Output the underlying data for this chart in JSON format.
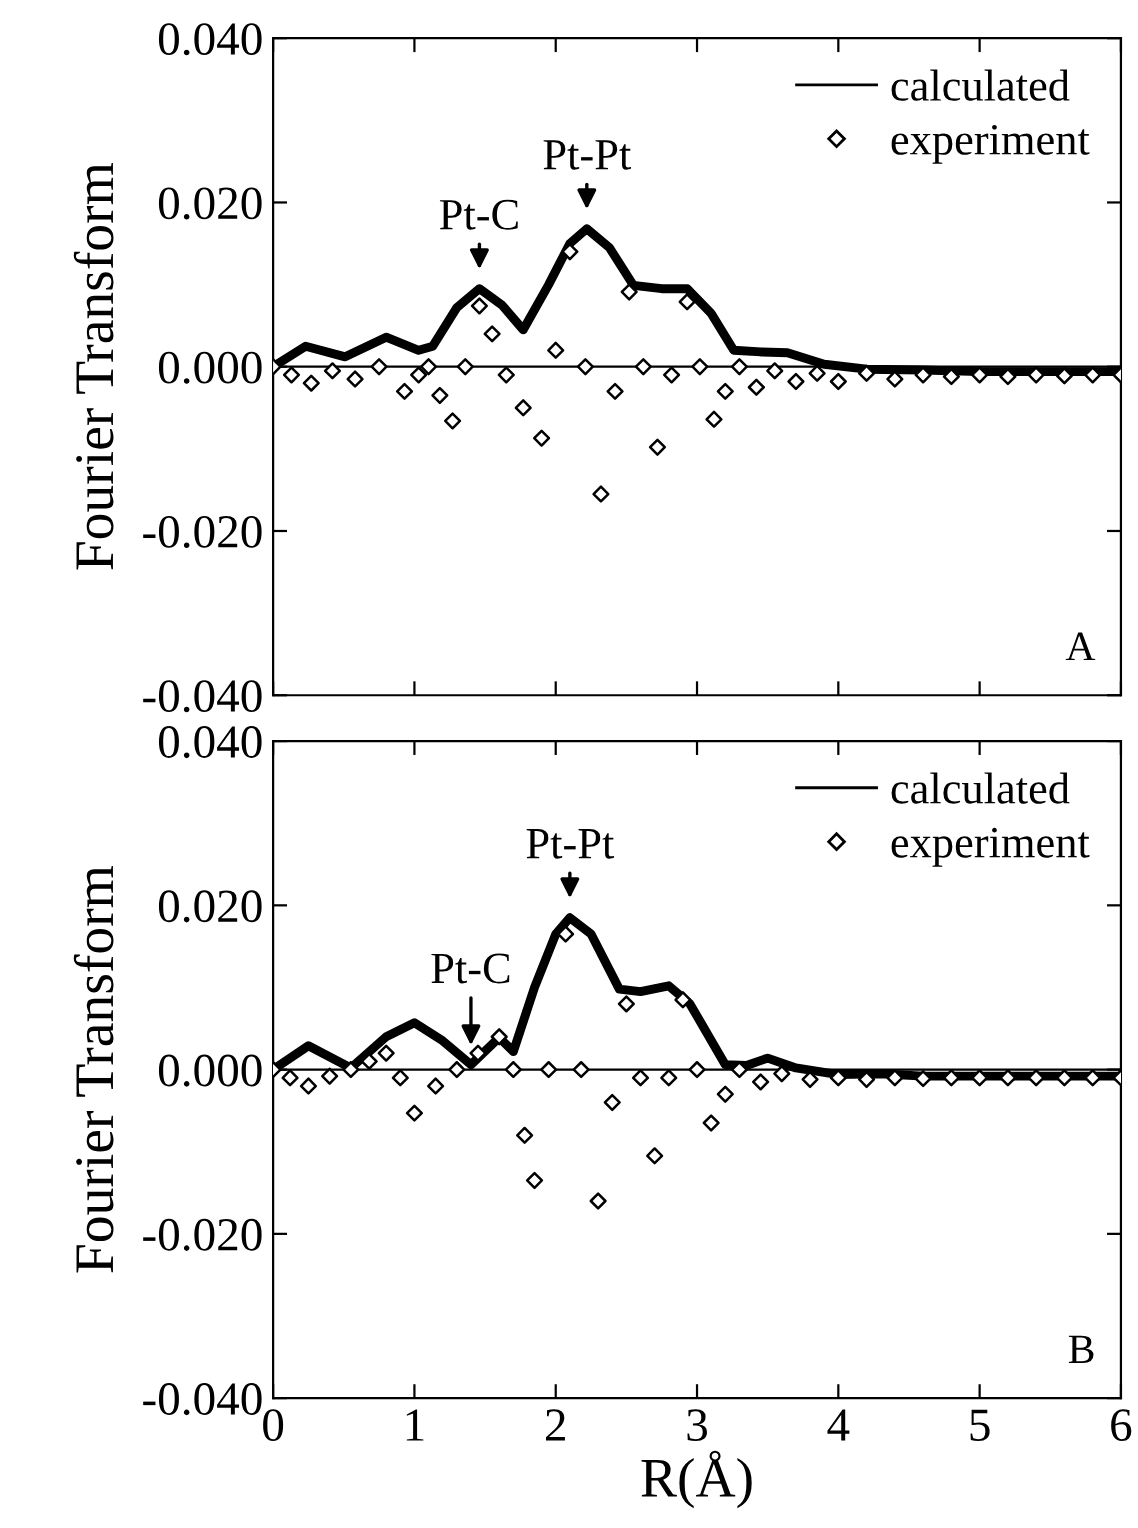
{
  "chart_data": [
    {
      "type": "line",
      "ylabel": "Fourier Transform",
      "xlim": [
        0,
        6
      ],
      "ylim": [
        -0.04,
        0.04
      ],
      "xticks": [
        0,
        1,
        2,
        3,
        4,
        5,
        6
      ],
      "yticks": [
        {
          "value": 0.04,
          "label": "0.040"
        },
        {
          "value": 0.02,
          "label": "0.020"
        },
        {
          "value": 0,
          "label": "0.000"
        },
        {
          "value": -0.02,
          "label": "-0.020"
        },
        {
          "value": -0.04,
          "label": "-0.040"
        }
      ],
      "tick_labels": "y",
      "legend": "top right",
      "grid": false,
      "ref_lines": [
        {
          "axis": "y",
          "value": 0,
          "color": "#000000"
        }
      ],
      "annotations": [
        {
          "text": "Pt-C",
          "x": 1.46,
          "y": 0.0095
        },
        {
          "text": "Pt-Pt",
          "x": 2.22,
          "y": 0.0168
        },
        "A"
      ],
      "series": [
        {
          "name": "calculated",
          "color": "#000000",
          "line_style": "solid",
          "marker": "none",
          "x": [
            0,
            0.23,
            0.51,
            0.8,
            1.03,
            1.13,
            1.3,
            1.46,
            1.62,
            1.77,
            1.95,
            2.1,
            2.22,
            2.38,
            2.55,
            2.75,
            2.93,
            3.1,
            3.26,
            3.45,
            3.64,
            3.9,
            4.2,
            4.6,
            5.0,
            5.5,
            6.0
          ],
          "values": [
            0,
            0.0025,
            0.0012,
            0.0036,
            0.002,
            0.0025,
            0.0072,
            0.0095,
            0.0075,
            0.0045,
            0.01,
            0.015,
            0.0168,
            0.0145,
            0.0099,
            0.0095,
            0.0095,
            0.0065,
            0.002,
            0.0018,
            0.0017,
            0.0003,
            -0.0003,
            -0.0004,
            -0.0006,
            -0.0006,
            -0.0006
          ]
        },
        {
          "name": "experiment",
          "type": "scatter",
          "color": "#000000",
          "marker": "diamond",
          "x": [
            0,
            0.13,
            0.27,
            0.42,
            0.58,
            0.75,
            0.93,
            1.03,
            1.1,
            1.18,
            1.27,
            1.36,
            1.46,
            1.55,
            1.65,
            1.77,
            1.9,
            2.0,
            2.1,
            2.21,
            2.32,
            2.42,
            2.52,
            2.62,
            2.72,
            2.82,
            2.93,
            3.02,
            3.12,
            3.2,
            3.3,
            3.42,
            3.55,
            3.7,
            3.85,
            4.0,
            4.2,
            4.4,
            4.6,
            4.8,
            5.0,
            5.2,
            5.4,
            5.6,
            5.8,
            6.0
          ],
          "values": [
            0,
            -0.001,
            -0.002,
            -0.0005,
            -0.0015,
            0.0,
            -0.003,
            -0.001,
            0.0,
            -0.0035,
            -0.0066,
            0.0,
            0.0074,
            0.004,
            -0.001,
            -0.005,
            -0.0087,
            0.002,
            0.014,
            0.0,
            -0.0155,
            -0.003,
            0.0091,
            0.0,
            -0.0098,
            -0.001,
            0.0079,
            0.0,
            -0.0064,
            -0.003,
            0.0,
            -0.0025,
            -0.0005,
            -0.0018,
            -0.0008,
            -0.0018,
            -0.0008,
            -0.0015,
            -0.001,
            -0.0012,
            -0.001,
            -0.0012,
            -0.001,
            -0.0011,
            -0.001,
            -0.001
          ]
        }
      ]
    },
    {
      "type": "line",
      "ylabel": "Fourier Transform",
      "xlabel": "R(Å)",
      "xlim": [
        0,
        6
      ],
      "ylim": [
        -0.04,
        0.04
      ],
      "xticks": [
        0,
        1,
        2,
        3,
        4,
        5,
        6
      ],
      "yticks": [
        {
          "value": 0.04,
          "label": "0.040"
        },
        {
          "value": 0.02,
          "label": "0.020"
        },
        {
          "value": 0,
          "label": "0.000"
        },
        {
          "value": -0.02,
          "label": "-0.020"
        },
        {
          "value": -0.04,
          "label": "-0.040"
        }
      ],
      "legend": "top right",
      "grid": false,
      "ref_lines": [
        {
          "axis": "y",
          "value": 0,
          "color": "#000000"
        }
      ],
      "annotations": [
        {
          "text": "Pt-C",
          "x": 1.4,
          "y": 0.0006
        },
        {
          "text": "Pt-Pt",
          "x": 2.1,
          "y": 0.0185
        },
        "B"
      ],
      "series": [
        {
          "name": "calculated",
          "color": "#000000",
          "line_style": "solid",
          "marker": "none",
          "x": [
            0,
            0.25,
            0.55,
            0.8,
            1.0,
            1.2,
            1.4,
            1.6,
            1.7,
            1.85,
            2.0,
            2.1,
            2.25,
            2.45,
            2.6,
            2.8,
            2.95,
            3.2,
            3.35,
            3.5,
            3.7,
            4.0,
            4.3,
            4.6,
            5.0,
            5.5,
            6.0
          ],
          "values": [
            0,
            0.0029,
            0.0002,
            0.004,
            0.0057,
            0.0035,
            0.0006,
            0.0039,
            0.0022,
            0.01,
            0.0165,
            0.0185,
            0.0165,
            0.0098,
            0.0095,
            0.0102,
            0.008,
            0.0006,
            0.0005,
            0.0014,
            0.0002,
            -0.0006,
            -0.0005,
            -0.0008,
            -0.0008,
            -0.0008,
            -0.0008
          ]
        },
        {
          "name": "experiment",
          "type": "scatter",
          "color": "#000000",
          "marker": "diamond",
          "x": [
            0,
            0.12,
            0.25,
            0.4,
            0.55,
            0.68,
            0.8,
            0.9,
            1.0,
            1.15,
            1.3,
            1.45,
            1.6,
            1.7,
            1.78,
            1.85,
            1.95,
            2.07,
            2.18,
            2.3,
            2.4,
            2.5,
            2.6,
            2.7,
            2.8,
            2.9,
            3.0,
            3.1,
            3.2,
            3.3,
            3.45,
            3.6,
            3.8,
            4.0,
            4.2,
            4.4,
            4.6,
            4.8,
            5.0,
            5.2,
            5.4,
            5.6,
            5.8,
            6.0
          ],
          "values": [
            0,
            -0.001,
            -0.002,
            -0.0008,
            0.0,
            0.001,
            0.002,
            -0.001,
            -0.0053,
            -0.002,
            0.0,
            0.002,
            0.004,
            0.0,
            -0.008,
            -0.0135,
            0.0,
            0.0165,
            0.0,
            -0.016,
            -0.004,
            0.008,
            -0.001,
            -0.0105,
            -0.001,
            0.0085,
            0.0,
            -0.0065,
            -0.003,
            0.0,
            -0.0015,
            -0.0005,
            -0.0012,
            -0.001,
            -0.0012,
            -0.001,
            -0.0011,
            -0.001,
            -0.001,
            -0.001,
            -0.001,
            -0.001,
            -0.001,
            -0.001
          ]
        }
      ]
    }
  ]
}
